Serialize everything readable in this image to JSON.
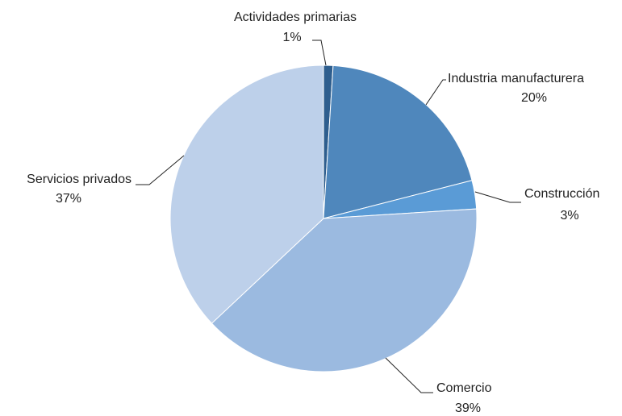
{
  "chart_data": {
    "type": "pie",
    "categories": [
      "Actividades primarias",
      "Industria manufacturera",
      "Construcción",
      "Comercio",
      "Servicios privados"
    ],
    "values": [
      1,
      20,
      3,
      39,
      37
    ],
    "value_labels": [
      "1%",
      "20%",
      "3%",
      "39%",
      "37%"
    ],
    "colors": [
      "#2e5e8e",
      "#4f87bc",
      "#5a9bd6",
      "#9bbae0",
      "#bdd0ea"
    ]
  }
}
